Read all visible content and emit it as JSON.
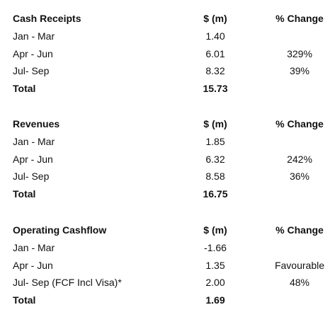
{
  "sections": [
    {
      "header": [
        "Cash Receipts",
        "$ (m)",
        "% Change"
      ],
      "rows": [
        [
          "Jan - Mar",
          "1.40"
        ],
        [
          "Apr - Jun",
          "6.01",
          "329%"
        ],
        [
          "Jul- Sep",
          "8.32",
          "39%"
        ],
        [
          "Total",
          "15.73"
        ]
      ]
    },
    {
      "header": [
        "Revenues",
        "$ (m)",
        "% Change"
      ],
      "rows": [
        [
          "Jan - Mar",
          "1.85"
        ],
        [
          "Apr - Jun",
          "6.32",
          "242%"
        ],
        [
          "Jul- Sep",
          "8.58",
          "36%"
        ],
        [
          "Total",
          "16.75"
        ]
      ]
    },
    {
      "header": [
        "Operating Cashflow",
        "$ (m)",
        "% Change"
      ],
      "rows": [
        [
          "Jan - Mar",
          "-1.66"
        ],
        [
          "Apr - Jun",
          "1.35",
          "Favourable"
        ],
        [
          "Jul- Sep (FCF Incl Visa)*",
          "2.00",
          "48%"
        ],
        [
          "Total",
          "1.69"
        ]
      ]
    }
  ]
}
